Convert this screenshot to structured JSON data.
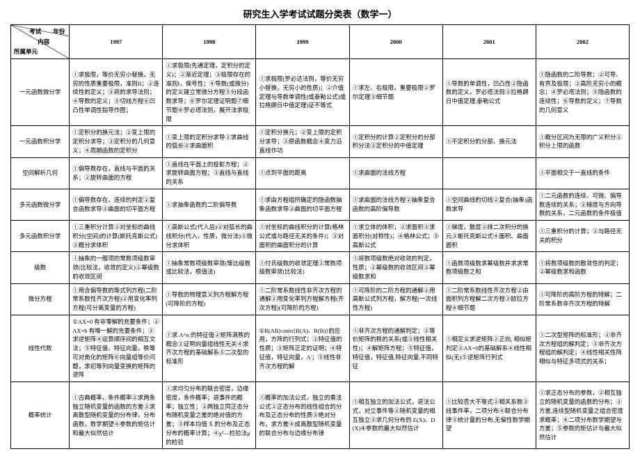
{
  "title": "研究生入学考试试题分类表（数学一）",
  "header": {
    "exam": "考试",
    "year": "年份",
    "content": "内容",
    "unit": "所属单元"
  },
  "years": [
    "1997",
    "1998",
    "1999",
    "2000",
    "2001",
    "2002"
  ],
  "rows": [
    {
      "name": "一元函数微分学",
      "cells": [
        "①求极限，等价无穷小替换，无穷的性质重要极限，准则II；②连续性的定义；③商的求导法则；④导数的定义；⑤切线方程⑥凹凸性单调性指导作图；",
        "①求极限(先通定理，定积分的定义)；②渐近定理；③极限存在的准则I，保号性；④导数(或微分)的定义建立常微分方程⑤分段函数求导；⑥罗尔定理证明题⑦细节题⑧罗必塔法则，展开法求极限",
        "①求极限(罗必达法则，等价无穷小替换，无穷小的性质)；②介值定理与导数单调性(或泰勒公式)或拉格朗日中值定理)证不等式",
        "①求左、右极限，重要极限②罗尔定理③细节题",
        "①导数的单调性，凹凸性②隐函数的定义，罗必塔法则③拉格朗日中值定理,泰勒公式",
        "①隐函数的二阶导数；②可导、有界及极限；③高阶无穷小的概念；④罗必塔法则；⑤隐函数的连续性；⑥导数的定义；⑦导数的几何意义"
      ]
    },
    {
      "name": "一元函数积分学",
      "cells": [
        "①定积分的换元法；②变上限的定积分求导；③定积分的几何意义；④周期函数的定积分",
        "①变上限的定积分求导②求曲线的弧长③求曲面积",
        "①定积分换元；②变上限的定积分求导；③原函数概念④变力沿直线作功",
        "①定积分的计算②定积分的分部积分法③定积分的中值定理",
        "①不定积分的分部、换元法",
        "①概分区间为无限的广义积分②积分上限的函数"
      ]
    },
    {
      "name": "空间解析几何",
      "cells": [
        "①偏导数存在，直线与平面的关系；②旋转曲面的方程",
        "①直线在平面上的投影方程；②求旋转曲面方程；③直线与直线的关系",
        "①点到平面的距离",
        "①求曲面的法线方程",
        "",
        "①平面相交于一直线的条件"
      ]
    },
    {
      "name": "多元函数微分学",
      "cells": [
        "①偏导数存在、连续的判定②复合函数求导③曲面的切平面方程",
        "①求抽象函数的二阶偏导数",
        "①求由方程组所确定的隐函数抽象函数求导②曲面的切平面方程",
        "①求曲面的法线方程②抽象复合函数的高阶偏导数",
        "①空间曲线的切线②复合(抽象)函数求导",
        "①二元函数的连续、可微、偏导数连续的关系；②梯度与方向导数的关系，二元函数的条件极值"
      ]
    },
    {
      "name": "多元函数积分学",
      "cells": [
        "①三重积分计算②对坐标的曲线积分(空间)的计算(斯托克斯公式)③概分求体积",
        "①高斯公式(代入后)②对弧长的曲线积分(代入，性质，微分法)③微分求体积",
        "①对坐标的曲线积分的计算(格林公式或与路径无关的条件)；②对面积的曲面积分的计算",
        "①求立体的体积；②求面积③求面积分(对称性)；④格林公式；⑤高斯公式",
        "①梯度，散度②排二次积分的换元③斯托克斯公式④面积、曲面面积",
        "①三重积分的计算；②与路径无关的积分"
      ]
    },
    {
      "name": "级数",
      "cells": [
        "①抽象的一般项的常数项级数审敛(比较法，收敛的定义)②幂级数的收敛区间",
        "①抽象常数项级数审敛(等比级数或比较法，根值法)",
        "①付氏级数的收敛定理②常数项级数审敛(比较法)",
        "①将数项级数绝对收敛的判定，性质；②幂级数的收敛区间③幂级数求和",
        "①函数项级数求幂级数并求求常数项级数之和",
        "①将数项级数的散敛性的判定；②幂级数求和函数"
      ]
    },
    {
      "name": "微分方程",
      "cells": [
        "①用含偏导数的等式列方程(二阶常系数性齐次方程)②用变化率列方程(可分离变量的方程)",
        "①导数的物理意义列方程解方程(可降阶的方程)",
        "①二阶常系数线性非齐次方程的通解②用变化率列方程解方程(齐次方程)(可降阶的方程)",
        "①可降阶的二阶方程的通解②用高斯公式列方程，解方程(一次线性方程)",
        "①二阶常系数线性齐次方程②由面积列方程解二次方程③欧拉方程④细节题",
        "①可降阶的高阶方程的特解；二阶常系数非齐次方程的特解"
      ]
    },
    {
      "name": "线性代数",
      "cells": [
        "①AX=0 有非零解的充要条件；② AX=b 有唯一解的充要条件；③求逆矩阵④运算顺序间的相互文法；⑤特征值、特征向量，秩等可对角化的矩阵⑥向量组等价问题，求初等列向量变换的矩阵的逆阵",
        "①求 A^n 的特征值②矩阵满秩的概念③证明向量组线性无关④求齐次方程的基础解系⑤二次型的标准形",
        "①R(AB)≤min{R(A)、R(B)}的应用，方阵的行列式；②特征值的性质；③矩阵正定的证明；④特征值，特征向量，A'；⑤线性非齐次方程的解",
        "①非齐次方程的通解判定；②等价矩阵的秩的关系(或③线性相关性)；④解矩阵方程；⑤特征值，特征值，特征值,特征向量,不同特征",
        "①相定义求逆矩阵②正向, 相似矩判定③AX=0的基础解系④线性相似(无)⑤逆矩阵行列式",
        "①二次型矩阵的标准形；②非齐次方程组的解判定；③非齐次方程组的解判定；④线性相关性阵相似与特征多项式的关系；"
      ]
    },
    {
      "name": "概率统计",
      "cells": [
        "①古典概率，条件概率②求两条独立随机变量的函数的方差③求离散型随机变量的分布律，分布函数，数学期望④参数的矩估计和最大似然估计",
        "①求均匀分布的联合密度，边缘密度，条件概率；退事件的概率；独立性；②两独立同正态分布随机变量之差的绝对值的方差；③样本均值 X̄ 的分布及正态分布的概率计算；④χ²—检验法μ的检验",
        "①概率的加法公式，独立的乘法公式②正态分布的线性组合的分布及正态分布的性质③绝对分布，求方差④成离散型随机变量的联合分布与边缘分布律",
        "①相互独立的加法公式，退法公式，对立事件等②随机变量的相互独立③求几何分布的 E(X)、D(X)④参数的最大似然估计",
        "①比较否大不等式②相关系数③线事件率，二项分布④联合分布律⑤统计量的分布,无偏性数学期望",
        "①求正态分布的参数，②相互独立的随机变量的函数的分布；③方差,连续型随机变量之组合密度求概率；④二项分布数学期望与方差；⑤参数的矩估计与最大似然估计"
      ]
    }
  ]
}
